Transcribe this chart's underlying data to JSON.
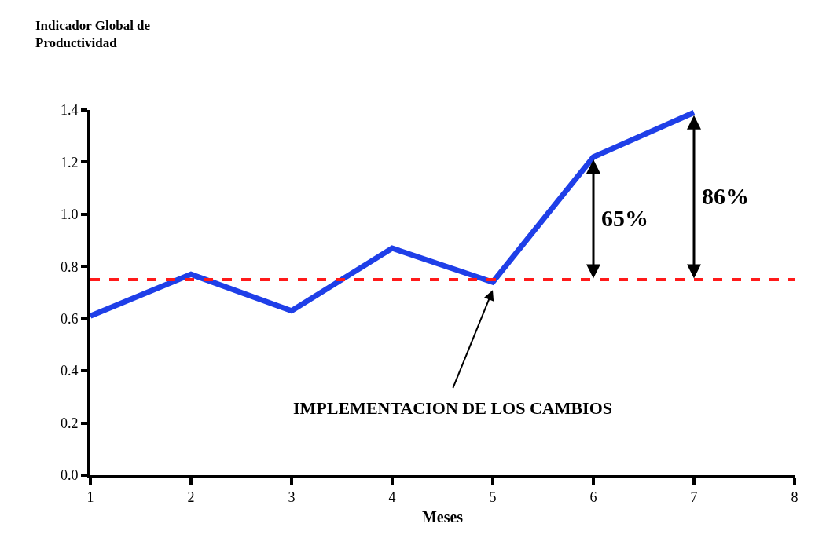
{
  "chart_data": {
    "type": "line",
    "ylabel": "Indicador Global de Productividad",
    "xlabel": "Meses",
    "x": [
      1,
      2,
      3,
      4,
      5,
      6,
      7
    ],
    "series": [
      {
        "color": "#1f3fe8",
        "values": [
          0.61,
          0.77,
          0.63,
          0.87,
          0.74,
          1.22,
          1.39
        ]
      }
    ],
    "xlim": [
      1,
      8
    ],
    "xticks": [
      1,
      2,
      3,
      4,
      5,
      6,
      7,
      8
    ],
    "ylim": [
      0,
      1.4
    ],
    "yticks": [
      {
        "value": 0,
        "label": "0.0"
      },
      {
        "value": 0.2,
        "label": "0.2"
      },
      {
        "value": 0.4,
        "label": "0.4"
      },
      {
        "value": 0.6,
        "label": "0.6"
      },
      {
        "value": 0.8,
        "label": "0.8"
      },
      {
        "value": 1.0,
        "label": "1.0"
      },
      {
        "value": 1.2,
        "label": "1.2"
      },
      {
        "value": 1.4,
        "label": "1.4"
      }
    ],
    "ref_lines": [
      {
        "axis": "y",
        "value": 0.75,
        "color": "#ff1a1a",
        "line_style": "dashed"
      }
    ],
    "annotations": [
      "65%",
      "86%",
      "IMPLEMENTACION DE LOS CAMBIOS"
    ],
    "legend": false,
    "marker": "none",
    "line_style": "solid"
  }
}
